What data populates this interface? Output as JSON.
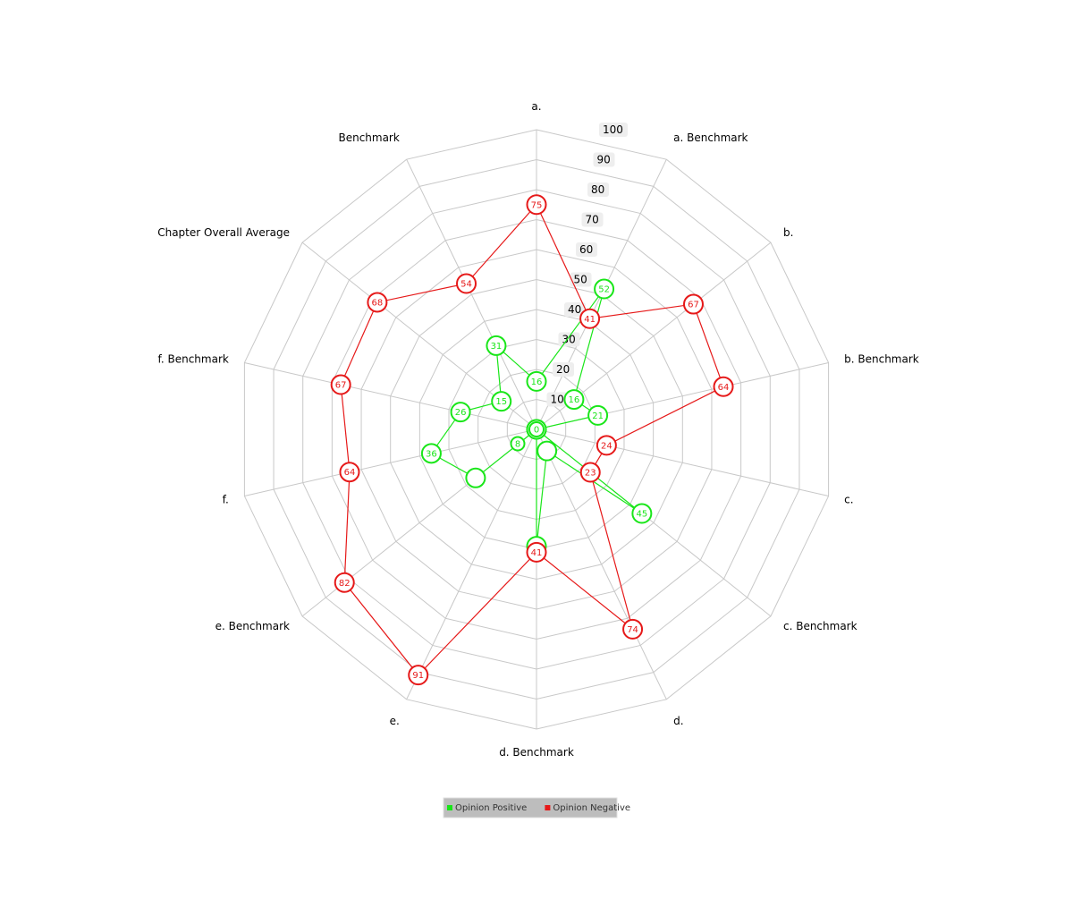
{
  "chart_data": {
    "type": "radar",
    "axes": [
      "a.",
      "a. Benchmark",
      "b.",
      "b. Benchmark",
      "c.",
      "c. Benchmark",
      "d.",
      "d. Benchmark",
      "e.",
      "e. Benchmark",
      "f.",
      "f. Benchmark",
      "Chapter Overall Average",
      "Benchmark"
    ],
    "r_ticks": [
      10,
      20,
      30,
      40,
      50,
      60,
      70,
      80,
      90,
      100
    ],
    "r_range": [
      0,
      100
    ],
    "center_label": "0",
    "grid": true,
    "legend_position": "bottom-center",
    "series": [
      {
        "name": "Opinion Positive",
        "color": "#19e619",
        "values": [
          16,
          52,
          16,
          21,
          0,
          45,
          8,
          39,
          0,
          26,
          36,
          26,
          15,
          31
        ],
        "labels": [
          "16",
          "52",
          "16",
          "21",
          "",
          "45",
          "",
          "",
          "",
          "",
          "36",
          "26",
          "15",
          "31"
        ],
        "center_points": [
          "0",
          "8"
        ]
      },
      {
        "name": "Opinion Negative",
        "color": "#e61919",
        "values": [
          75,
          41,
          67,
          64,
          24,
          23,
          74,
          41,
          91,
          82,
          64,
          67,
          68,
          54
        ],
        "labels": [
          "75",
          "41",
          "67",
          "64",
          "24",
          "23",
          "74",
          "41",
          "91",
          "82",
          "64",
          "67",
          "68",
          "54"
        ]
      }
    ]
  }
}
